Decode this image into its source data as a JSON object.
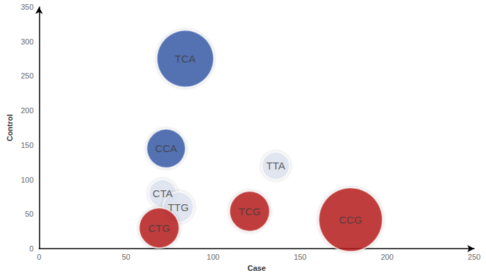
{
  "chart_data": {
    "type": "scatter",
    "x_label": "Case",
    "y_label": "Control",
    "labels": [
      "TCA",
      "CCA",
      "TTA",
      "CTA",
      "TTG",
      "CTG",
      "TCG",
      "CCG"
    ],
    "x": [
      84,
      73,
      136,
      71,
      80,
      69,
      121,
      179
    ],
    "values": [
      275,
      145,
      120,
      80,
      60,
      30,
      54,
      42
    ],
    "sizes": [
      82,
      56,
      40,
      40,
      44,
      58,
      58,
      92
    ],
    "colors": [
      "#3558a8",
      "#3558a8",
      "#dfe5f1",
      "#dfe5f1",
      "#dfe5f1",
      "#b81d1d",
      "#b81d1d",
      "#b81d1d"
    ],
    "xlim": [
      0,
      250
    ],
    "xticks": [
      0,
      50,
      100,
      150,
      200,
      250
    ],
    "ylim": [
      0,
      350
    ],
    "yticks": [
      0,
      50,
      100,
      150,
      200,
      250,
      300,
      350
    ],
    "grid": false
  }
}
